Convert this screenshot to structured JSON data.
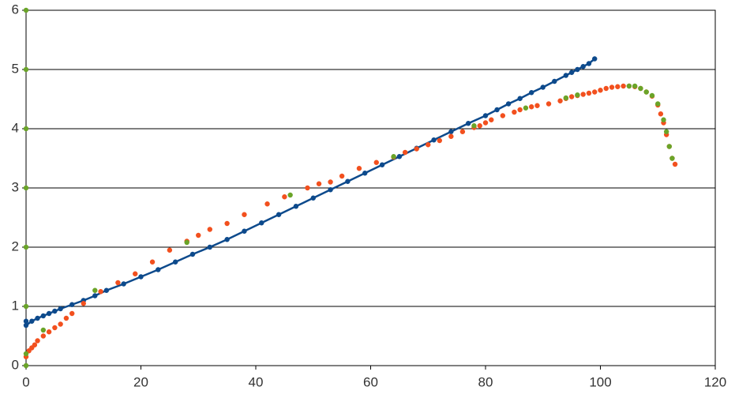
{
  "chart_data": {
    "type": "scatter",
    "xlim": [
      0,
      120
    ],
    "xticks": [
      0,
      20,
      40,
      60,
      80,
      100,
      120
    ],
    "ylim": [
      0,
      6
    ],
    "yticks": [
      0,
      1,
      2,
      3,
      4,
      5,
      6
    ],
    "grid": true,
    "series": [
      {
        "color": "#0d4a8c",
        "line": true,
        "x": [
          0,
          0,
          1,
          2,
          3,
          4,
          5,
          6,
          8,
          10,
          12,
          14,
          17,
          20,
          23,
          26,
          29,
          32,
          35,
          38,
          41,
          44,
          47,
          50,
          53,
          56,
          59,
          62,
          65,
          68,
          71,
          74,
          77,
          80,
          82,
          84,
          86,
          88,
          90,
          92,
          94,
          95,
          96,
          97,
          98,
          99
        ],
        "values": [
          0.75,
          0.68,
          0.75,
          0.8,
          0.84,
          0.88,
          0.92,
          0.96,
          1.03,
          1.1,
          1.18,
          1.27,
          1.38,
          1.5,
          1.62,
          1.75,
          1.88,
          2.0,
          2.13,
          2.27,
          2.41,
          2.55,
          2.69,
          2.83,
          2.97,
          3.11,
          3.25,
          3.39,
          3.53,
          3.67,
          3.81,
          3.95,
          4.09,
          4.22,
          4.32,
          4.42,
          4.51,
          4.61,
          4.7,
          4.8,
          4.9,
          4.95,
          5.0,
          5.05,
          5.1,
          5.18
        ]
      },
      {
        "color": "#f2501e",
        "line": false,
        "x": [
          0,
          0.5,
          1,
          1.5,
          2,
          3,
          4,
          5,
          6,
          7,
          8,
          10,
          13,
          16,
          19,
          22,
          25,
          28,
          30,
          32,
          35,
          38,
          42,
          45,
          49,
          51,
          53,
          55,
          58,
          61,
          64,
          66,
          68,
          70,
          72,
          74,
          76,
          78,
          79,
          80,
          81,
          83,
          85,
          86,
          88,
          89,
          91,
          93,
          94,
          95,
          96,
          97,
          98,
          99,
          100,
          101,
          102,
          103,
          104,
          105,
          106,
          107,
          108,
          109,
          110,
          110.5,
          111,
          111.5,
          112,
          112.5,
          113
        ],
        "values": [
          0.15,
          0.25,
          0.3,
          0.35,
          0.42,
          0.5,
          0.57,
          0.64,
          0.7,
          0.8,
          0.88,
          1.05,
          1.25,
          1.4,
          1.55,
          1.75,
          1.95,
          2.1,
          2.2,
          2.3,
          2.4,
          2.55,
          2.73,
          2.85,
          3.0,
          3.07,
          3.1,
          3.2,
          3.33,
          3.43,
          3.52,
          3.6,
          3.66,
          3.73,
          3.8,
          3.87,
          3.95,
          4.02,
          4.05,
          4.1,
          4.15,
          4.22,
          4.28,
          4.32,
          4.37,
          4.39,
          4.42,
          4.47,
          4.51,
          4.54,
          4.56,
          4.58,
          4.6,
          4.62,
          4.65,
          4.68,
          4.7,
          4.71,
          4.72,
          4.72,
          4.71,
          4.68,
          4.62,
          4.55,
          4.4,
          4.25,
          4.1,
          3.9,
          3.7,
          3.5,
          3.4
        ]
      },
      {
        "color": "#6aa428",
        "line": false,
        "x": [
          0,
          0,
          0,
          0,
          0,
          0,
          0,
          0,
          3,
          12,
          28,
          46,
          64,
          78,
          87,
          94,
          96,
          105,
          106,
          107,
          108,
          109,
          110,
          111,
          111.5,
          112,
          112.5
        ],
        "values": [
          6,
          5,
          4,
          3,
          2,
          1,
          0,
          0.2,
          0.6,
          1.27,
          2.08,
          2.88,
          3.53,
          4.05,
          4.35,
          4.52,
          4.57,
          4.72,
          4.72,
          4.68,
          4.62,
          4.56,
          4.42,
          4.15,
          3.95,
          3.7,
          3.5
        ]
      }
    ]
  }
}
